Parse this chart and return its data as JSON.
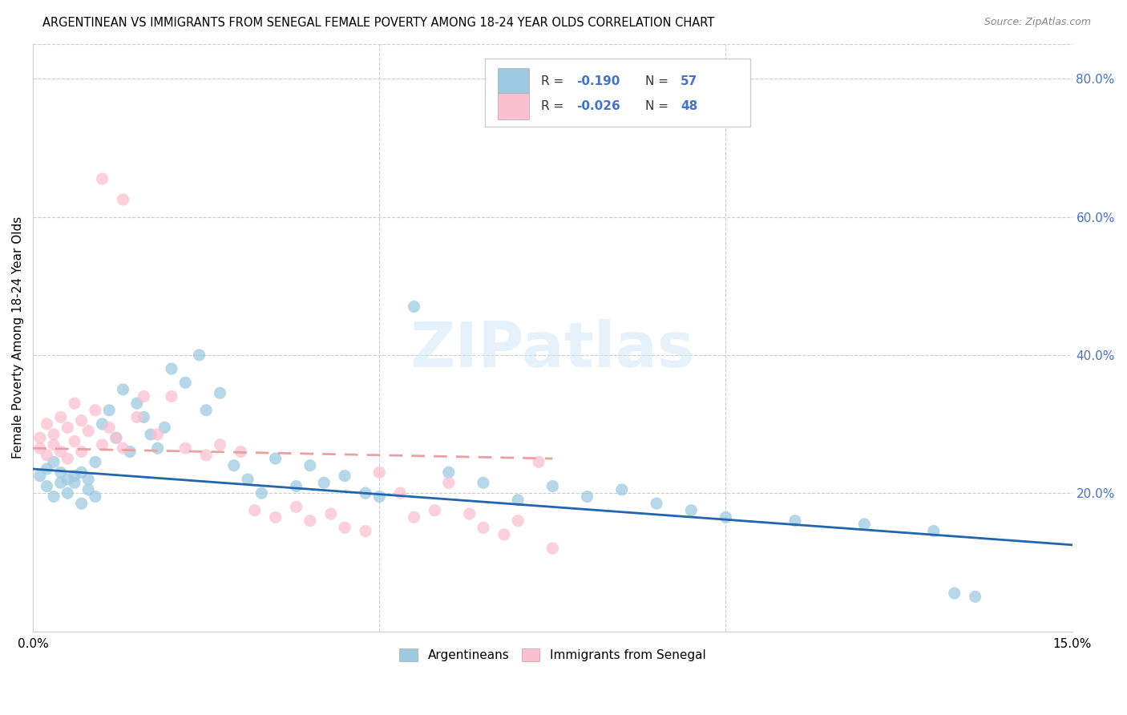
{
  "title": "ARGENTINEAN VS IMMIGRANTS FROM SENEGAL FEMALE POVERTY AMONG 18-24 YEAR OLDS CORRELATION CHART",
  "source": "Source: ZipAtlas.com",
  "ylabel": "Female Poverty Among 18-24 Year Olds",
  "xlim": [
    0.0,
    0.15
  ],
  "ylim": [
    0.0,
    0.85
  ],
  "blue_color": "#9ecae1",
  "pink_color": "#fcbfd2",
  "blue_line_color": "#2166ac",
  "pink_line_color": "#e8a0a0",
  "grid_color": "#cccccc",
  "background_color": "#ffffff",
  "watermark": "ZIPatlas",
  "legend_r1": "-0.190",
  "legend_n1": "57",
  "legend_r2": "-0.026",
  "legend_n2": "48",
  "blue_label_color": "#4472c4",
  "right_tick_color": "#4472c4",
  "argentinean_x": [
    0.001,
    0.002,
    0.002,
    0.003,
    0.003,
    0.004,
    0.004,
    0.005,
    0.005,
    0.006,
    0.006,
    0.007,
    0.007,
    0.008,
    0.008,
    0.009,
    0.009,
    0.01,
    0.011,
    0.012,
    0.013,
    0.014,
    0.015,
    0.016,
    0.017,
    0.018,
    0.019,
    0.02,
    0.022,
    0.024,
    0.025,
    0.027,
    0.029,
    0.031,
    0.033,
    0.035,
    0.038,
    0.04,
    0.042,
    0.045,
    0.048,
    0.05,
    0.055,
    0.06,
    0.065,
    0.07,
    0.075,
    0.08,
    0.085,
    0.09,
    0.095,
    0.1,
    0.11,
    0.12,
    0.13,
    0.133,
    0.136
  ],
  "argentinean_y": [
    0.225,
    0.21,
    0.235,
    0.195,
    0.245,
    0.215,
    0.23,
    0.22,
    0.2,
    0.225,
    0.215,
    0.23,
    0.185,
    0.205,
    0.22,
    0.245,
    0.195,
    0.3,
    0.32,
    0.28,
    0.35,
    0.26,
    0.33,
    0.31,
    0.285,
    0.265,
    0.295,
    0.38,
    0.36,
    0.4,
    0.32,
    0.345,
    0.24,
    0.22,
    0.2,
    0.25,
    0.21,
    0.24,
    0.215,
    0.225,
    0.2,
    0.195,
    0.47,
    0.23,
    0.215,
    0.19,
    0.21,
    0.195,
    0.205,
    0.185,
    0.175,
    0.165,
    0.16,
    0.155,
    0.145,
    0.055,
    0.05
  ],
  "senegal_x": [
    0.001,
    0.001,
    0.002,
    0.002,
    0.003,
    0.003,
    0.004,
    0.004,
    0.005,
    0.005,
    0.006,
    0.006,
    0.007,
    0.007,
    0.008,
    0.009,
    0.01,
    0.011,
    0.012,
    0.013,
    0.015,
    0.016,
    0.018,
    0.02,
    0.022,
    0.025,
    0.027,
    0.03,
    0.032,
    0.035,
    0.038,
    0.04,
    0.043,
    0.045,
    0.048,
    0.05,
    0.053,
    0.055,
    0.058,
    0.06,
    0.063,
    0.065,
    0.068,
    0.07,
    0.073,
    0.075,
    0.01,
    0.013
  ],
  "senegal_y": [
    0.265,
    0.28,
    0.255,
    0.3,
    0.27,
    0.285,
    0.26,
    0.31,
    0.25,
    0.295,
    0.275,
    0.33,
    0.26,
    0.305,
    0.29,
    0.32,
    0.27,
    0.295,
    0.28,
    0.265,
    0.31,
    0.34,
    0.285,
    0.34,
    0.265,
    0.255,
    0.27,
    0.26,
    0.175,
    0.165,
    0.18,
    0.16,
    0.17,
    0.15,
    0.145,
    0.23,
    0.2,
    0.165,
    0.175,
    0.215,
    0.17,
    0.15,
    0.14,
    0.16,
    0.245,
    0.12,
    0.655,
    0.625
  ],
  "blue_line_x0": 0.0,
  "blue_line_x1": 0.15,
  "blue_line_y0": 0.235,
  "blue_line_y1": 0.125,
  "pink_line_x0": 0.0,
  "pink_line_x1": 0.075,
  "pink_line_y0": 0.265,
  "pink_line_y1": 0.25
}
